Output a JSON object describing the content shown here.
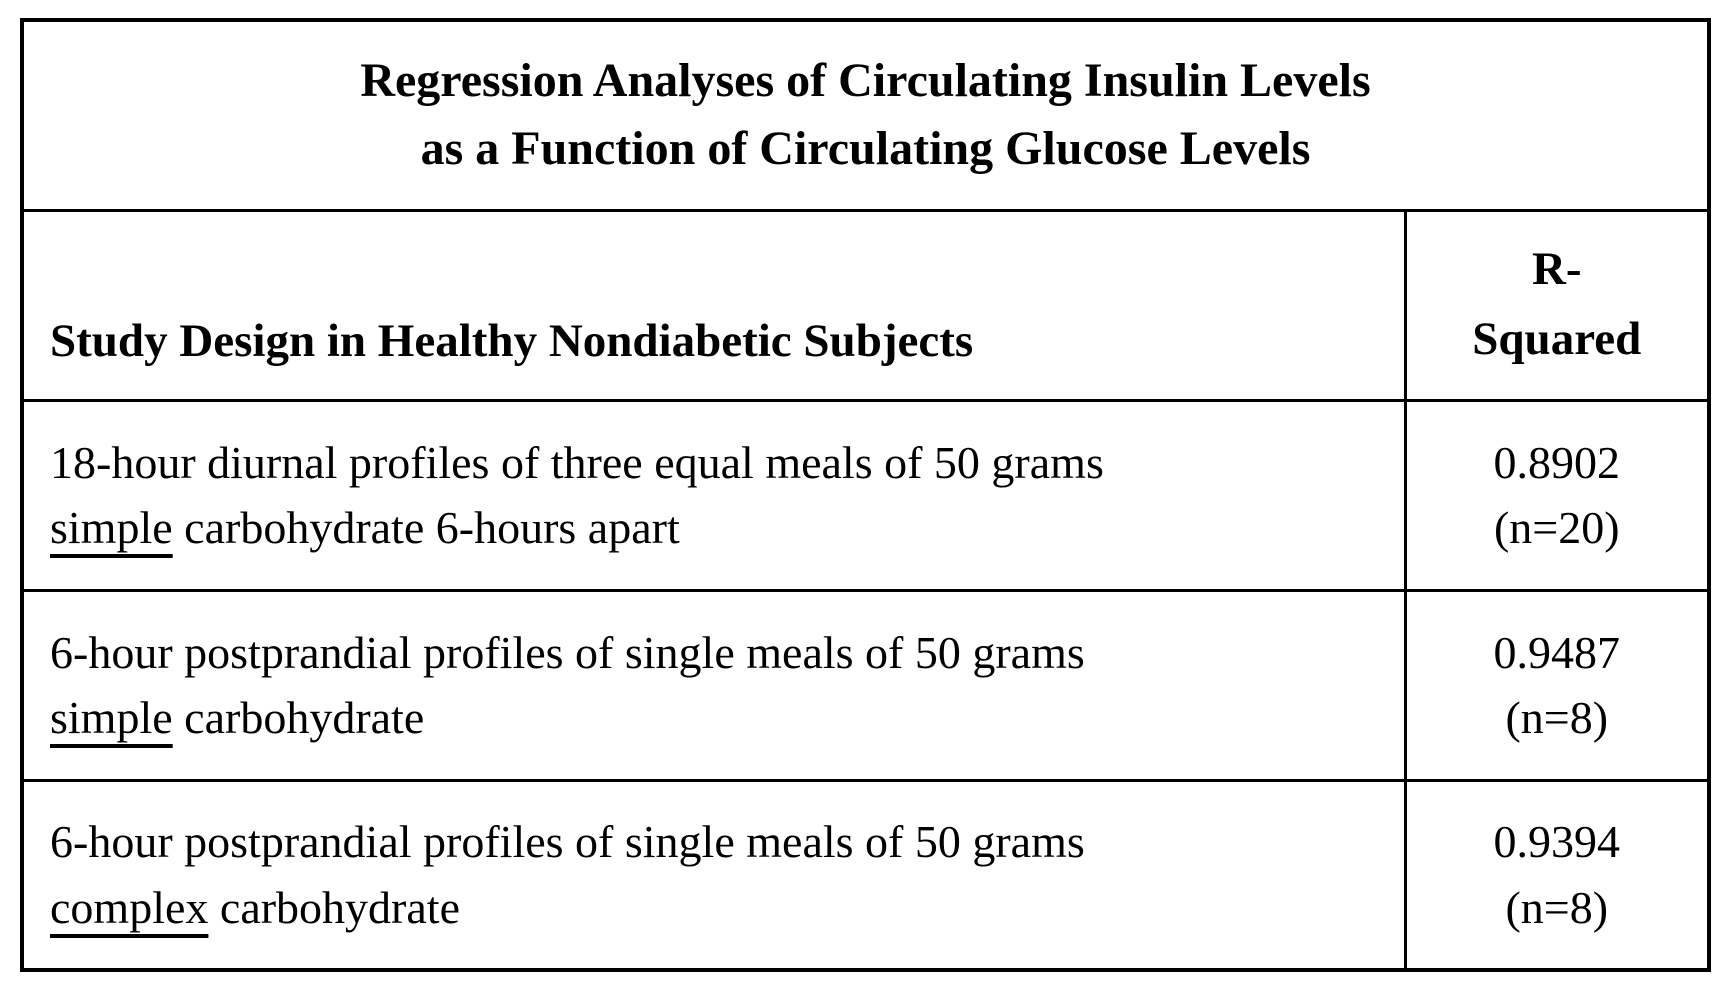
{
  "chart_data": {
    "type": "table",
    "title": "Regression Analyses of Circulating Insulin Levels as a Function of Circulating Glucose Levels",
    "columns": [
      "Study Design in Healthy Nondiabetic Subjects",
      "R-Squared"
    ],
    "rows": [
      [
        "18-hour diurnal profiles of three equal meals of 50 grams simple carbohydrate 6-hours apart",
        "0.8902 (n=20)"
      ],
      [
        "6-hour postprandial profiles of single meals of 50 grams simple carbohydrate",
        "0.9487 (n=8)"
      ],
      [
        "6-hour postprandial profiles of single meals of 50 grams complex carbohydrate",
        "0.9394 (n=8)"
      ]
    ],
    "r_squared_values": [
      0.8902,
      0.9487,
      0.9394
    ],
    "sample_sizes": [
      20,
      8,
      8
    ],
    "underlined_words": [
      "simple",
      "simple",
      "complex"
    ],
    "layout": "bordered table, title row spanning both columns, black 3-4px rules, serif bold headers"
  },
  "table": {
    "title": {
      "line1": "Regression Analyses of Circulating Insulin Levels",
      "line2": "as a Function of Circulating Glucose Levels"
    },
    "header": {
      "design_label": "Study Design in Healthy Nondiabetic Subjects",
      "r_line1": "R-",
      "r_line2": "Squared"
    },
    "rows": [
      {
        "line1": "18-hour diurnal profiles of three equal meals of 50 grams",
        "underlined": "simple",
        "line2_rest": " carbohydrate 6-hours apart",
        "r_value": "0.8902",
        "n": "(n=20)"
      },
      {
        "line1": "6-hour postprandial profiles of single meals of 50 grams",
        "underlined": "simple",
        "line2_rest": " carbohydrate",
        "r_value": "0.9487",
        "n": "(n=8)"
      },
      {
        "line1": "6-hour postprandial profiles of single meals of 50 grams",
        "underlined": "complex",
        "line2_rest": " carbohydrate",
        "r_value": "0.9394",
        "n": "(n=8)"
      }
    ]
  }
}
